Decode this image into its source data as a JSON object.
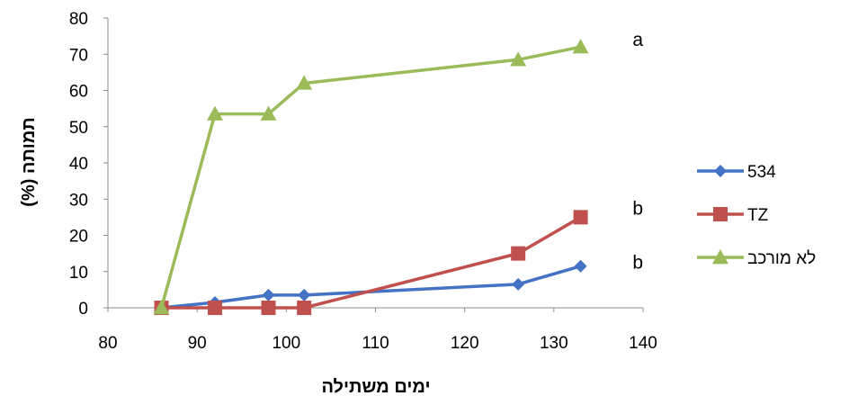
{
  "chart_data": {
    "type": "line",
    "xlabel": "ימים משתילה",
    "ylabel": "תמותה (%)",
    "xlim": [
      80,
      140
    ],
    "ylim": [
      0,
      80
    ],
    "x_ticks": [
      "80",
      "90",
      "100",
      "110",
      "120",
      "130",
      "140"
    ],
    "y_ticks": [
      "0",
      "10",
      "20",
      "30",
      "40",
      "50",
      "60",
      "70",
      "80"
    ],
    "grid": false,
    "legend_position": "right",
    "series": [
      {
        "name": "534",
        "color": "#4472C4",
        "marker": "diamond",
        "points": [
          [
            86,
            0
          ],
          [
            92,
            1.5
          ],
          [
            98,
            3.5
          ],
          [
            102,
            3.5
          ],
          [
            126,
            6.5
          ],
          [
            133,
            11.5
          ]
        ]
      },
      {
        "name": "TZ",
        "color": "#C0504D",
        "marker": "square",
        "points": [
          [
            86,
            0
          ],
          [
            92,
            0
          ],
          [
            98,
            0
          ],
          [
            102,
            0
          ],
          [
            126,
            15
          ],
          [
            133,
            25
          ]
        ]
      },
      {
        "name": "לא מורכב",
        "color": "#9BBB59",
        "marker": "triangle",
        "points": [
          [
            86,
            0
          ],
          [
            92,
            53.5
          ],
          [
            98,
            53.5
          ],
          [
            102,
            62
          ],
          [
            126,
            68.5
          ],
          [
            133,
            72
          ]
        ]
      }
    ],
    "annotations": [
      {
        "text": "a",
        "x": 137,
        "y": 74
      },
      {
        "text": "b",
        "x": 137,
        "y": 27.5
      },
      {
        "text": "b",
        "x": 137,
        "y": 12.5
      }
    ]
  }
}
